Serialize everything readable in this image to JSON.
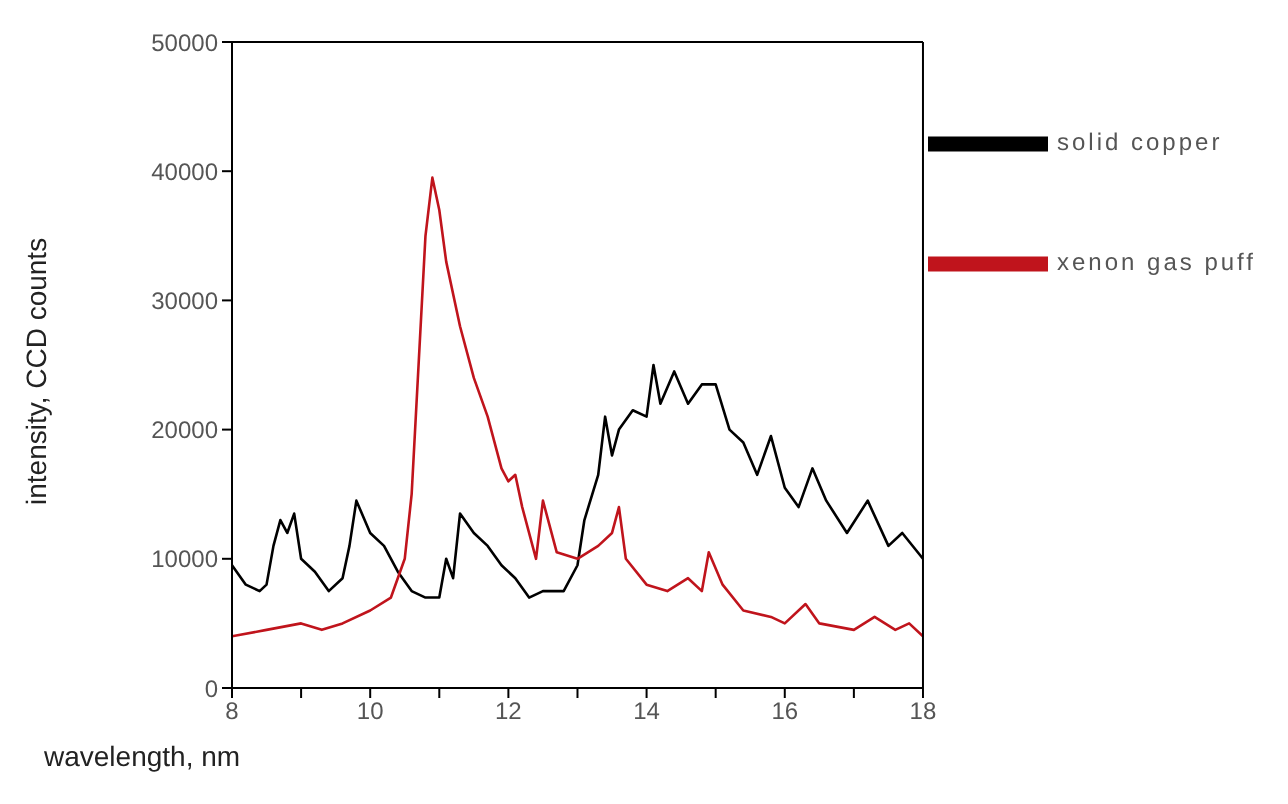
{
  "chart_data": {
    "type": "line",
    "xlabel": "wavelength, nm",
    "ylabel": "intensity, CCD counts",
    "xlim": [
      8,
      18
    ],
    "xticks": [
      8,
      {
        "value": 9,
        "label": null
      },
      10,
      {
        "value": 11,
        "label": null
      },
      12,
      {
        "value": 13,
        "label": null
      },
      14,
      {
        "value": 15,
        "label": null
      },
      16,
      {
        "value": 17,
        "label": null
      },
      18
    ],
    "ylim": [
      0,
      50000
    ],
    "yticks": [
      0,
      10000,
      20000,
      30000,
      40000,
      50000
    ],
    "grid": false,
    "legend": "top right",
    "marker": "none",
    "line_style": "solid",
    "series": [
      {
        "name": "solid copper",
        "color": "#000000",
        "x": [
          8,
          8.2,
          8.4,
          8.5,
          8.6,
          8.7,
          8.8,
          8.9,
          9.0,
          9.2,
          9.4,
          9.6,
          9.7,
          9.8,
          10.0,
          10.2,
          10.4,
          10.6,
          10.8,
          11.0,
          11.1,
          11.2,
          11.3,
          11.5,
          11.7,
          11.9,
          12.1,
          12.3,
          12.5,
          12.8,
          13.0,
          13.1,
          13.3,
          13.4,
          13.5,
          13.6,
          13.8,
          14.0,
          14.1,
          14.2,
          14.4,
          14.6,
          14.8,
          15.0,
          15.2,
          15.4,
          15.6,
          15.8,
          16.0,
          16.2,
          16.4,
          16.6,
          16.9,
          17.2,
          17.5,
          17.7,
          18
        ],
        "values": [
          9500,
          8000,
          7500,
          8000,
          11000,
          13000,
          12000,
          13500,
          10000,
          9000,
          7500,
          8500,
          11000,
          14500,
          12000,
          11000,
          9000,
          7500,
          7000,
          7000,
          10000,
          8500,
          13500,
          12000,
          11000,
          9500,
          8500,
          7000,
          7500,
          7500,
          9500,
          13000,
          16500,
          21000,
          18000,
          20000,
          21500,
          21000,
          25000,
          22000,
          24500,
          22000,
          23500,
          23500,
          20000,
          19000,
          16500,
          19500,
          15500,
          14000,
          17000,
          14500,
          12000,
          14500,
          11000,
          12000,
          10000
        ]
      },
      {
        "name": "xenon gas puff",
        "color": "#c0141c",
        "x": [
          8,
          8.5,
          9.0,
          9.3,
          9.6,
          10.0,
          10.3,
          10.5,
          10.6,
          10.7,
          10.8,
          10.9,
          11.0,
          11.1,
          11.3,
          11.5,
          11.7,
          11.9,
          12.0,
          12.1,
          12.2,
          12.4,
          12.5,
          12.7,
          13.0,
          13.3,
          13.5,
          13.6,
          13.7,
          14.0,
          14.3,
          14.6,
          14.8,
          14.9,
          15.1,
          15.4,
          15.8,
          16.0,
          16.3,
          16.5,
          17.0,
          17.3,
          17.6,
          17.8,
          18
        ],
        "values": [
          4000,
          4500,
          5000,
          4500,
          5000,
          6000,
          7000,
          10000,
          15000,
          25000,
          35000,
          39500,
          37000,
          33000,
          28000,
          24000,
          21000,
          17000,
          16000,
          16500,
          14000,
          10000,
          14500,
          10500,
          10000,
          11000,
          12000,
          14000,
          10000,
          8000,
          7500,
          8500,
          7500,
          10500,
          8000,
          6000,
          5500,
          5000,
          6500,
          5000,
          4500,
          5500,
          4500,
          5000,
          4000
        ]
      }
    ]
  }
}
